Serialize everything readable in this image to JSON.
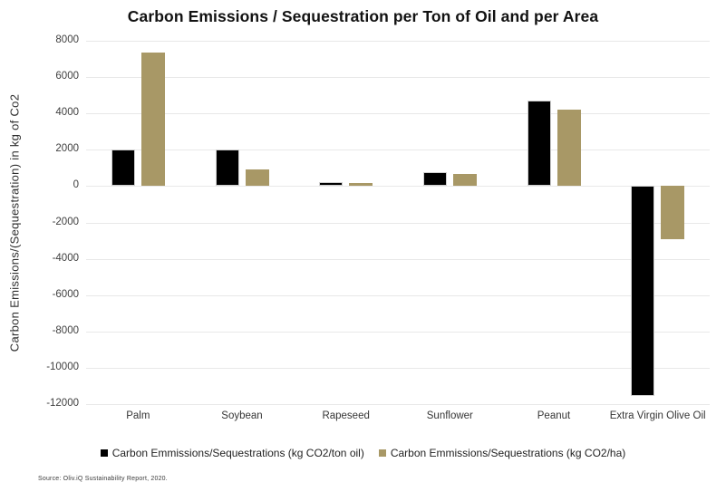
{
  "chart_data": {
    "type": "bar",
    "title": "Carbon Emissions / Sequestration per Ton of Oil and per Area",
    "ylabel": "Carbon Emissions/(Sequestration) in kg of Co2",
    "xlabel": "",
    "categories": [
      "Palm",
      "Soybean",
      "Rapeseed",
      "Sunflower",
      "Peanut",
      "Extra Virgin Olive Oil"
    ],
    "series": [
      {
        "name": "Carbon Emmissions/Sequestrations (kg CO2/ton oil)",
        "color": "#000000",
        "values": [
          2000,
          2000,
          200,
          750,
          4700,
          -11550
        ]
      },
      {
        "name": "Carbon Emmissions/Sequestrations (kg CO2/ha)",
        "color": "#a89866",
        "values": [
          7350,
          900,
          150,
          650,
          4200,
          -2950
        ]
      }
    ],
    "ylim": [
      -12000,
      8000
    ],
    "yticks": [
      8000,
      6000,
      4000,
      2000,
      0,
      -2000,
      -4000,
      -6000,
      -8000,
      -10000,
      -12000
    ],
    "grid": true,
    "legend_position": "bottom",
    "gridline_color": "#e8e8e8",
    "background_color": "#ffffff"
  },
  "source_note": "Source: Oliv.iQ Sustainability Report, 2020."
}
